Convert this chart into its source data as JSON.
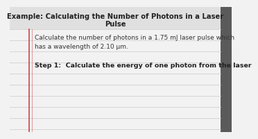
{
  "title_line1": "Example: Calculating the Number of Photons in a Laser",
  "title_line2": "Pulse",
  "body_text": "Calculate the number of photons in a 1.75 mJ laser pulse which\nhas a wavelength of 2.10 μm.",
  "step_text": "Step 1:  Calculate the energy of one photon from the laser",
  "paper_color": "#f2f2f2",
  "line_color": "#d0d0d0",
  "red_line_color": "#cc4444",
  "red_line2_color": "#dd8888",
  "title_bg_color": "#e0e0e0",
  "right_bar_color": "#5a5a5a",
  "title_fontsize": 7.2,
  "body_fontsize": 6.5,
  "step_fontsize": 6.8,
  "text_color": "#222222",
  "body_color": "#333333"
}
